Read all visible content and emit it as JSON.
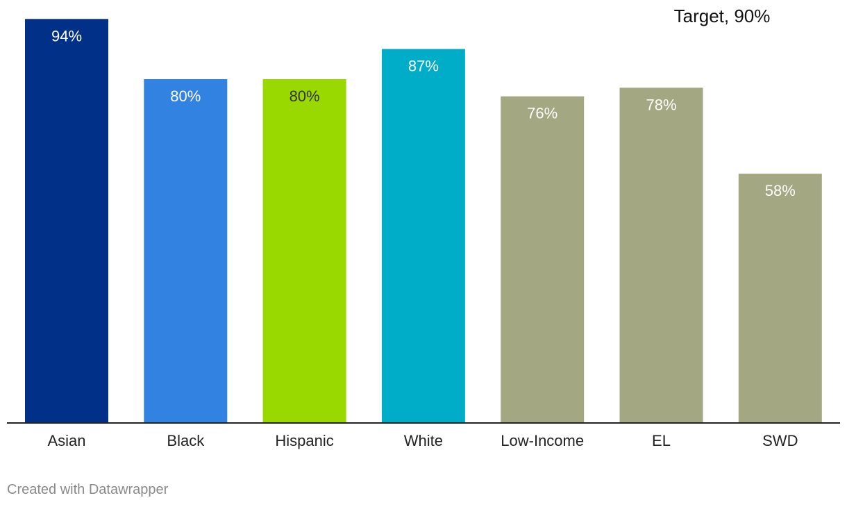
{
  "chart_data": {
    "type": "bar",
    "categories": [
      "Asian",
      "Black",
      "Hispanic",
      "White",
      "Low-Income",
      "EL",
      "SWD"
    ],
    "values": [
      94,
      80,
      80,
      87,
      76,
      78,
      58
    ],
    "value_labels": [
      "94%",
      "80%",
      "80%",
      "87%",
      "76%",
      "78%",
      "58%"
    ],
    "colors": [
      "#003087",
      "#3282e2",
      "#99d900",
      "#00adc8",
      "#a3a883",
      "#a3a883",
      "#a3a883"
    ],
    "label_styles": [
      "light",
      "light",
      "dark",
      "light",
      "light",
      "light",
      "light"
    ],
    "ylim": [
      0,
      96.8
    ],
    "grid": false,
    "annotation": {
      "text": "Target, 90%",
      "value": 90
    }
  },
  "footer": {
    "credit": "Created with Datawrapper"
  }
}
